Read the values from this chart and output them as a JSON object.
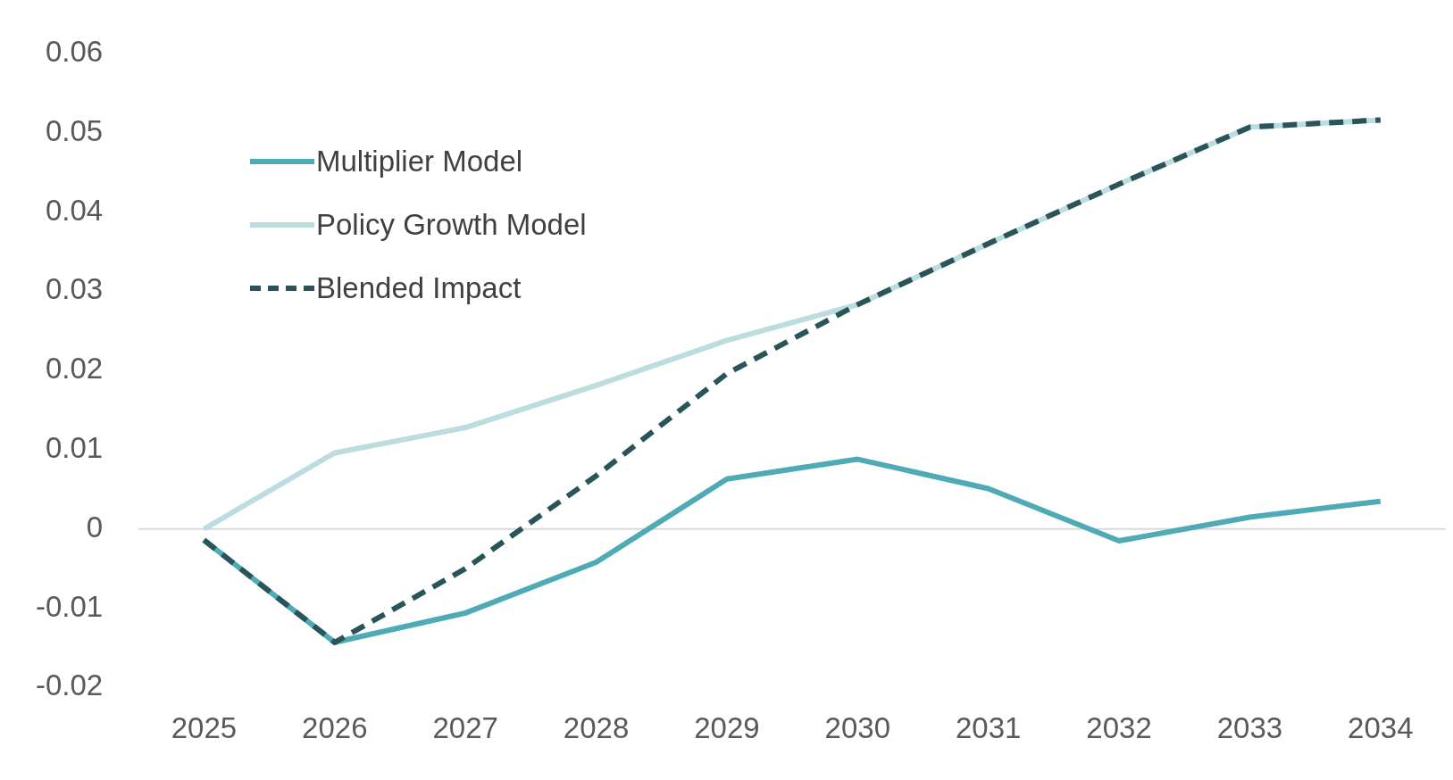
{
  "chart_data": {
    "type": "line",
    "categories": [
      "2025",
      "2026",
      "2027",
      "2028",
      "2029",
      "2030",
      "2031",
      "2032",
      "2033",
      "2034"
    ],
    "series": [
      {
        "name": "Multiplier Model",
        "color": "#4eabb5",
        "line_style": "solid",
        "values": [
          -0.0014,
          -0.0143,
          -0.0106,
          -0.0042,
          0.0063,
          0.0088,
          0.0051,
          -0.0015,
          0.0015,
          0.0035
        ]
      },
      {
        "name": "Policy Growth Model",
        "color": "#bcdde0",
        "line_style": "solid",
        "values": [
          0,
          0.0096,
          0.0128,
          0.0181,
          0.0238,
          0.0283,
          0.036,
          0.0435,
          0.0507,
          0.0516
        ]
      },
      {
        "name": "Blended Impact",
        "color": "#2a5558",
        "line_style": "dashed",
        "values": [
          -0.0014,
          -0.0143,
          -0.005,
          0.0067,
          0.0196,
          0.0283,
          0.036,
          0.0435,
          0.0507,
          0.0516
        ]
      }
    ],
    "ylim": [
      -0.02,
      0.06
    ],
    "yticks": [
      -0.02,
      -0.01,
      0,
      0.01,
      0.02,
      0.03,
      0.04,
      0.05,
      0.06
    ],
    "grid": false,
    "legend": "top left",
    "marker": "none",
    "ref_lines": [
      {
        "axis": "y",
        "value": 0,
        "color": "#d9d9d9"
      }
    ]
  }
}
